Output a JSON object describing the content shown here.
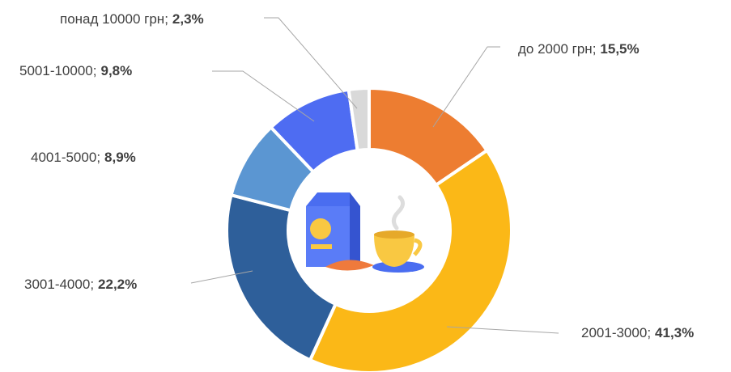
{
  "chart_data": {
    "type": "donut",
    "categories": [
      "до 2000 грн",
      "2001-3000",
      "3001-4000",
      "4001-5000",
      "5001-10000",
      "понад 10000 грн"
    ],
    "values": [
      15.5,
      41.3,
      22.2,
      8.9,
      9.8,
      2.3
    ],
    "value_labels": [
      "15,5%",
      "41,3%",
      "22,2%",
      "8,9%",
      "9,8%",
      "2,3%"
    ],
    "label_separator": ";",
    "colors": [
      "#ed7d31",
      "#fbb817",
      "#2e5f9a",
      "#5b96d2",
      "#4e6cf2",
      "#d9d9d9"
    ]
  }
}
